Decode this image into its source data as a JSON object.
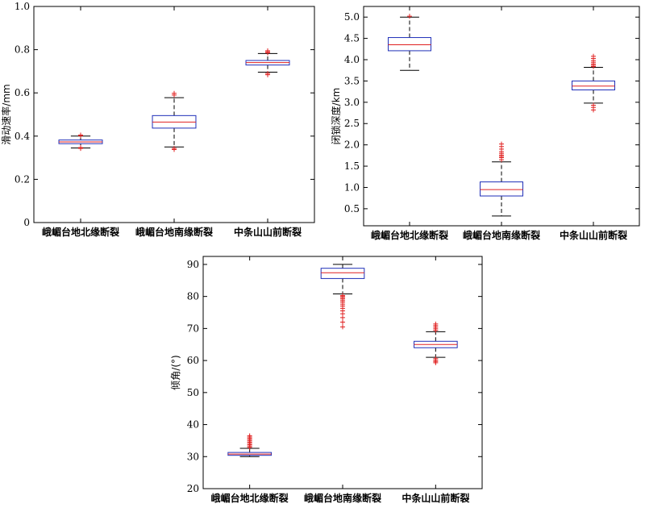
{
  "chart_data": [
    {
      "type": "box",
      "ylabel": "滑动速率/mm",
      "ylim": [
        0,
        1.0
      ],
      "yticks": [
        0,
        0.2,
        0.4,
        0.6,
        0.8,
        1.0
      ],
      "ytick_labels": [
        "0",
        "0.2",
        "0.4",
        "0.6",
        "0.8",
        "1.0"
      ],
      "categories": [
        "峨嵋台地北缘断裂",
        "峨嵋台地南缘断裂",
        "中条山山前断裂"
      ],
      "boxes": [
        {
          "whisker_low": 0.345,
          "q1": 0.365,
          "median": 0.373,
          "q3": 0.382,
          "whisker_high": 0.4,
          "outliers": [
            0.343,
            0.347,
            0.402,
            0.405
          ]
        },
        {
          "whisker_low": 0.35,
          "q1": 0.437,
          "median": 0.465,
          "q3": 0.495,
          "whisker_high": 0.578,
          "outliers": [
            0.338,
            0.343,
            0.59,
            0.598
          ]
        },
        {
          "whisker_low": 0.696,
          "q1": 0.729,
          "median": 0.74,
          "q3": 0.75,
          "whisker_high": 0.782,
          "outliers": [
            0.684,
            0.69,
            0.785,
            0.79,
            0.795
          ]
        }
      ]
    },
    {
      "type": "box",
      "ylabel": "闭锁深度/km",
      "ylim": [
        0.1,
        5.25
      ],
      "yticks": [
        0.5,
        1.0,
        1.5,
        2.0,
        2.5,
        3.0,
        3.5,
        4.0,
        4.5,
        5.0
      ],
      "ytick_labels": [
        "0.5",
        "1.0",
        "1.5",
        "2.0",
        "2.5",
        "3.0",
        "3.5",
        "4.0",
        "4.5",
        "5.0"
      ],
      "categories": [
        "峨嵋台地北缘断裂",
        "峨嵋台地南缘断裂",
        "中条山山前断裂"
      ],
      "boxes": [
        {
          "whisker_low": 3.75,
          "q1": 4.21,
          "median": 4.35,
          "q3": 4.52,
          "whisker_high": 5.0,
          "outliers": [
            5.02
          ]
        },
        {
          "whisker_low": 0.33,
          "q1": 0.8,
          "median": 0.95,
          "q3": 1.13,
          "whisker_high": 1.6,
          "outliers": [
            1.65,
            1.7,
            1.73,
            1.76,
            1.8,
            1.84,
            1.9,
            1.96,
            2.02
          ]
        },
        {
          "whisker_low": 2.98,
          "q1": 3.29,
          "median": 3.38,
          "q3": 3.5,
          "whisker_high": 3.82,
          "outliers": [
            2.82,
            2.88,
            2.93,
            3.84,
            3.87,
            3.9,
            3.94,
            3.98,
            4.03,
            4.08
          ]
        }
      ]
    },
    {
      "type": "box",
      "ylabel": "倾角/(°)",
      "ylim": [
        20,
        92.5
      ],
      "yticks": [
        20,
        30,
        40,
        50,
        60,
        70,
        80,
        90
      ],
      "ytick_labels": [
        "20",
        "30",
        "40",
        "50",
        "60",
        "70",
        "80",
        "90"
      ],
      "categories": [
        "峨嵋台地北缘断裂",
        "峨嵋台地南缘断裂",
        "中条山山前断裂"
      ],
      "boxes": [
        {
          "whisker_low": 30.0,
          "q1": 30.4,
          "median": 30.8,
          "q3": 31.3,
          "whisker_high": 32.6,
          "outliers": [
            32.9,
            33.3,
            33.7,
            34.1,
            34.5,
            34.9,
            35.3,
            35.7,
            36.1,
            36.5
          ]
        },
        {
          "whisker_low": 80.8,
          "q1": 85.6,
          "median": 87.4,
          "q3": 88.8,
          "whisker_high": 90.0,
          "outliers": [
            70.5,
            72.0,
            73.4,
            74.6,
            75.5,
            76.3,
            77.0,
            77.6,
            78.2,
            78.7,
            79.2,
            79.6,
            80.0,
            80.3
          ]
        },
        {
          "whisker_low": 61.0,
          "q1": 64.0,
          "median": 65.0,
          "q3": 66.0,
          "whisker_high": 69.0,
          "outliers": [
            59.3,
            59.7,
            60.1,
            60.6,
            69.4,
            69.9,
            70.4,
            70.9,
            71.4
          ]
        }
      ]
    }
  ]
}
